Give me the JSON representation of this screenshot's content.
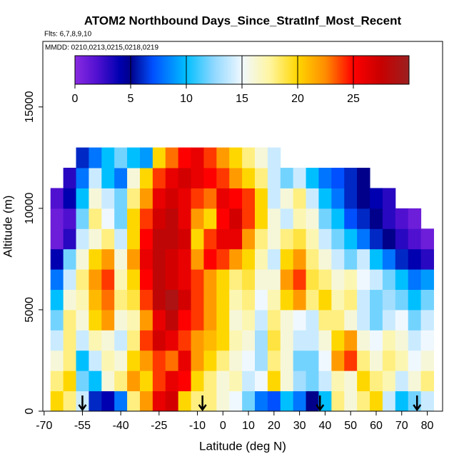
{
  "chart_data": {
    "type": "heatmap",
    "title": "ATOM2 Northbound Days_Since_StratInf_Most_Recent",
    "subtitle": "Flts: 6,7,8,9,10",
    "annotation": "MMDD: 0210,0213,0215,0218,0219",
    "xlabel": "Latitude (deg N)",
    "ylabel": "Altitude (m)",
    "xlim": [
      -70.5,
      86
    ],
    "ylim": [
      0,
      18230
    ],
    "xticks": [
      -70,
      -55,
      -40,
      -25,
      -10,
      0,
      10,
      20,
      30,
      40,
      50,
      60,
      70,
      80
    ],
    "yticks": [
      0,
      5000,
      10000,
      15000
    ],
    "x": [
      -65,
      -60,
      -55,
      -50,
      -45,
      -40,
      -35,
      -30,
      -25,
      -20,
      -15,
      -10,
      -5,
      0,
      5,
      10,
      15,
      20,
      25,
      30,
      35,
      40,
      45,
      50,
      55,
      60,
      65,
      70,
      75,
      80
    ],
    "y": [
      500,
      1500,
      2500,
      3500,
      4500,
      5500,
      6500,
      7500,
      8500,
      9500,
      10500,
      11500,
      12500
    ],
    "z": [
      [
        20,
        18,
        14,
        6,
        4,
        8,
        18,
        22,
        26,
        27,
        20,
        18,
        18,
        16,
        15,
        12,
        8,
        7,
        10,
        8,
        5,
        10,
        18,
        16,
        18,
        20,
        14,
        10,
        12,
        14
      ],
      [
        18,
        20,
        12,
        10,
        16,
        18,
        22,
        20,
        24,
        26,
        25,
        20,
        18,
        16,
        17,
        14,
        15,
        20,
        16,
        13,
        12,
        14,
        17,
        16,
        20,
        18,
        17,
        14,
        16,
        18
      ],
      [
        16,
        18,
        10,
        14,
        17,
        16,
        20,
        22,
        24,
        23,
        26,
        22,
        20,
        18,
        16,
        15,
        13,
        18,
        16,
        12,
        12,
        15,
        22,
        24,
        18,
        16,
        18,
        17,
        15,
        16
      ],
      [
        14,
        18,
        14,
        17,
        16,
        14,
        18,
        24,
        27,
        26,
        24,
        22,
        21,
        20,
        17,
        16,
        13,
        19,
        16,
        14,
        14,
        16,
        20,
        22,
        16,
        15,
        17,
        16,
        14,
        15
      ],
      [
        12,
        18,
        16,
        20,
        22,
        16,
        17,
        22,
        26,
        28,
        25,
        24,
        22,
        20,
        16,
        17,
        14,
        18,
        16,
        15,
        14,
        18,
        18,
        16,
        14,
        12,
        14,
        15,
        12,
        14
      ],
      [
        10,
        16,
        17,
        21,
        23,
        18,
        19,
        24,
        28,
        29,
        27,
        24,
        22,
        20,
        17,
        18,
        15,
        17,
        20,
        22,
        18,
        20,
        17,
        18,
        14,
        12,
        13,
        12,
        10,
        12
      ],
      [
        8,
        14,
        18,
        22,
        24,
        17,
        20,
        25,
        28,
        27,
        26,
        24,
        22,
        20,
        18,
        19,
        16,
        16,
        22,
        24,
        19,
        18,
        16,
        17,
        15,
        14,
        12,
        10,
        8,
        9
      ],
      [
        4,
        12,
        16,
        20,
        22,
        16,
        22,
        26,
        28,
        27,
        26,
        22,
        25,
        24,
        22,
        20,
        17,
        14,
        20,
        22,
        18,
        16,
        14,
        12,
        14,
        10,
        8,
        6,
        4,
        3
      ],
      [
        1,
        3,
        14,
        16,
        18,
        14,
        20,
        25,
        28,
        28,
        27,
        20,
        24,
        26,
        26,
        22,
        18,
        16,
        18,
        19,
        17,
        14,
        12,
        10,
        8,
        6,
        5,
        3,
        2,
        1
      ],
      [
        1,
        2,
        12,
        18,
        15,
        12,
        20,
        24,
        27,
        28,
        26,
        22,
        20,
        25,
        27,
        24,
        20,
        16,
        14,
        17,
        16,
        12,
        10,
        7,
        6,
        5,
        3,
        2,
        1,
        null
      ],
      [
        2,
        4,
        10,
        16,
        14,
        12,
        18,
        22,
        26,
        27,
        26,
        24,
        23,
        26,
        25,
        24,
        20,
        14,
        16,
        18,
        14,
        10,
        8,
        6,
        5,
        4,
        3,
        null,
        null,
        null
      ],
      [
        null,
        3,
        8,
        14,
        10,
        8,
        16,
        20,
        24,
        26,
        27,
        26,
        25,
        24,
        22,
        20,
        18,
        14,
        12,
        14,
        10,
        8,
        7,
        6,
        5,
        null,
        null,
        null,
        null,
        null
      ],
      [
        null,
        null,
        6,
        8,
        10,
        12,
        10,
        9,
        20,
        23,
        25,
        26,
        24,
        22,
        20,
        18,
        16,
        14,
        null,
        null,
        null,
        null,
        null,
        null,
        null,
        null,
        null,
        null,
        null,
        null
      ]
    ],
    "colorbar_lim": [
      0,
      30
    ],
    "colorbar_ticks": [
      0,
      5,
      10,
      15,
      20,
      25
    ],
    "colorscale": [
      [
        0,
        "#8a2be2"
      ],
      [
        2,
        "#5010d0"
      ],
      [
        4,
        "#0000b0"
      ],
      [
        5,
        "#00008b"
      ],
      [
        7,
        "#0050ff"
      ],
      [
        10,
        "#00bfff"
      ],
      [
        12.5,
        "#90d8ff"
      ],
      [
        15,
        "#f0f8ff"
      ],
      [
        17.5,
        "#fff5a0"
      ],
      [
        20,
        "#ffd700"
      ],
      [
        22.5,
        "#ff8c00"
      ],
      [
        25,
        "#ff0000"
      ],
      [
        27.5,
        "#c80000"
      ],
      [
        30,
        "#9b2020"
      ]
    ],
    "flight_markers": [
      -55,
      -8,
      38,
      76
    ]
  }
}
